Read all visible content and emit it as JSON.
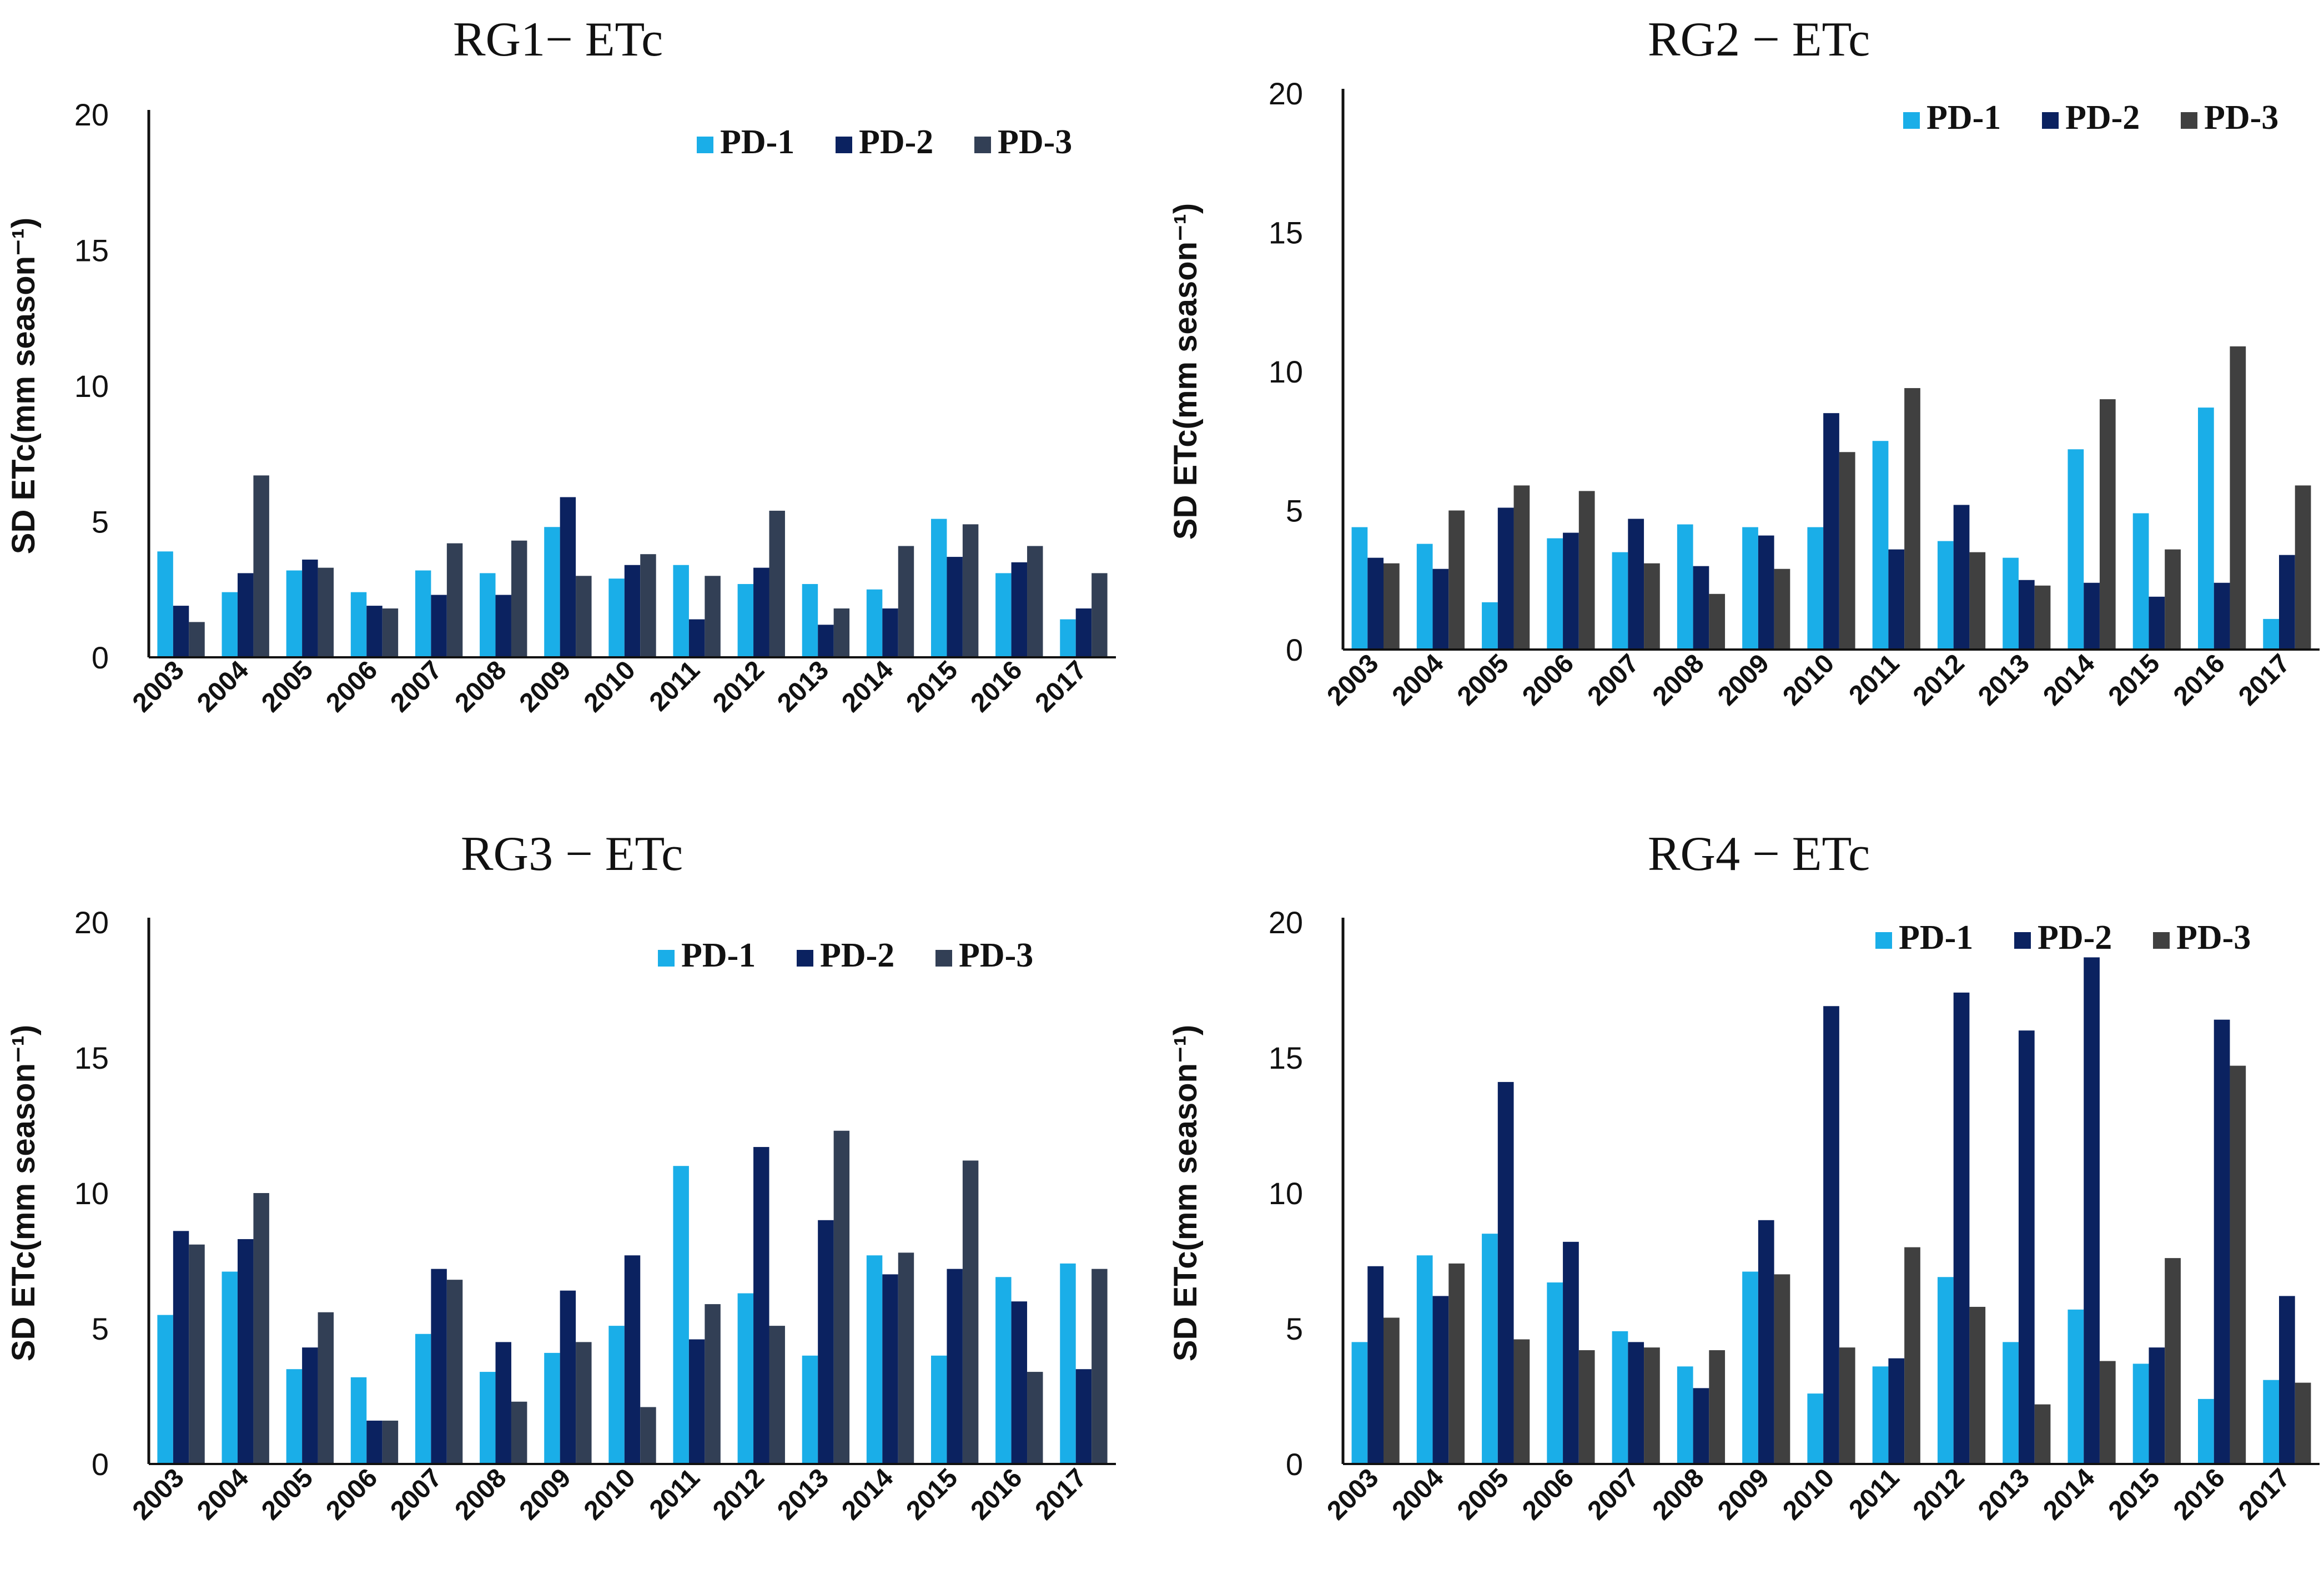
{
  "chart_data": [
    {
      "type": "bar",
      "title": "RG1− ETc",
      "ylabel": "SD ETc(mm season⁻¹)",
      "xlabel": "",
      "ylim": [
        0,
        20
      ],
      "yticks": [
        "0",
        "5",
        "10",
        "15",
        "20"
      ],
      "legend_position": "top-right",
      "categories": [
        "2003",
        "2004",
        "2005",
        "2006",
        "2007",
        "2008",
        "2009",
        "2010",
        "2011",
        "2012",
        "2013",
        "2014",
        "2015",
        "2016",
        "2017"
      ],
      "series": [
        {
          "name": "PD-1",
          "color": "#1aaee8",
          "values": [
            3.9,
            2.4,
            3.2,
            2.4,
            3.2,
            3.1,
            4.8,
            2.9,
            3.4,
            2.7,
            2.7,
            2.5,
            5.1,
            3.1,
            1.4
          ]
        },
        {
          "name": "PD-2",
          "color": "#0b2260",
          "values": [
            1.9,
            3.1,
            3.6,
            1.9,
            2.3,
            2.3,
            5.9,
            3.4,
            1.4,
            3.3,
            1.2,
            1.8,
            3.7,
            3.5,
            1.8
          ]
        },
        {
          "name": "PD-3",
          "color": "#323f55",
          "values": [
            1.3,
            6.7,
            3.3,
            1.8,
            4.2,
            4.3,
            3.0,
            3.8,
            3.0,
            5.4,
            1.8,
            4.1,
            4.9,
            4.1,
            3.1
          ]
        }
      ]
    },
    {
      "type": "bar",
      "title": "RG2 − ETc",
      "ylabel": "SD ETc(mm season⁻¹)",
      "xlabel": "",
      "ylim": [
        0,
        20
      ],
      "yticks": [
        "0",
        "5",
        "10",
        "15",
        "20"
      ],
      "legend_position": "top-right",
      "categories": [
        "2003",
        "2004",
        "2005",
        "2006",
        "2007",
        "2008",
        "2009",
        "2010",
        "2011",
        "2012",
        "2013",
        "2014",
        "2015",
        "2016",
        "2017"
      ],
      "series": [
        {
          "name": "PD-1",
          "color": "#1aaee8",
          "values": [
            4.4,
            3.8,
            1.7,
            4.0,
            3.5,
            4.5,
            4.4,
            4.4,
            7.5,
            3.9,
            3.3,
            7.2,
            4.9,
            8.7,
            1.1
          ]
        },
        {
          "name": "PD-2",
          "color": "#0b2260",
          "values": [
            3.3,
            2.9,
            5.1,
            4.2,
            4.7,
            3.0,
            4.1,
            8.5,
            3.6,
            5.2,
            2.5,
            2.4,
            1.9,
            2.4,
            3.4
          ]
        },
        {
          "name": "PD-3",
          "color": "#404040",
          "values": [
            3.1,
            5.0,
            5.9,
            5.7,
            3.1,
            2.0,
            2.9,
            7.1,
            9.4,
            3.5,
            2.3,
            9.0,
            3.6,
            10.9,
            5.9
          ]
        }
      ]
    },
    {
      "type": "bar",
      "title": "RG3 − ETc",
      "ylabel": "SD ETc(mm season⁻¹)",
      "xlabel": "",
      "ylim": [
        0,
        20
      ],
      "yticks": [
        "0",
        "5",
        "10",
        "15",
        "20"
      ],
      "legend_position": "top-right",
      "categories": [
        "2003",
        "2004",
        "2005",
        "2006",
        "2007",
        "2008",
        "2009",
        "2010",
        "2011",
        "2012",
        "2013",
        "2014",
        "2015",
        "2016",
        "2017"
      ],
      "series": [
        {
          "name": "PD-1",
          "color": "#1aaee8",
          "values": [
            5.5,
            7.1,
            3.5,
            3.2,
            4.8,
            3.4,
            4.1,
            5.1,
            11.0,
            6.3,
            4.0,
            7.7,
            4.0,
            6.9,
            7.4
          ]
        },
        {
          "name": "PD-2",
          "color": "#0b2260",
          "values": [
            8.6,
            8.3,
            4.3,
            1.6,
            7.2,
            4.5,
            6.4,
            7.7,
            4.6,
            11.7,
            9.0,
            7.0,
            7.2,
            6.0,
            3.5
          ]
        },
        {
          "name": "PD-3",
          "color": "#323f55",
          "values": [
            8.1,
            10.0,
            5.6,
            1.6,
            6.8,
            2.3,
            4.5,
            2.1,
            5.9,
            5.1,
            12.3,
            7.8,
            11.2,
            3.4,
            7.2
          ]
        }
      ]
    },
    {
      "type": "bar",
      "title": "RG4 − ETc",
      "ylabel": "SD ETc(mm season⁻¹)",
      "xlabel": "",
      "ylim": [
        0,
        20
      ],
      "yticks": [
        "0",
        "5",
        "10",
        "15",
        "20"
      ],
      "legend_position": "top-right",
      "categories": [
        "2003",
        "2004",
        "2005",
        "2006",
        "2007",
        "2008",
        "2009",
        "2010",
        "2011",
        "2012",
        "2013",
        "2014",
        "2015",
        "2016",
        "2017"
      ],
      "series": [
        {
          "name": "PD-1",
          "color": "#1aaee8",
          "values": [
            4.5,
            7.7,
            8.5,
            6.7,
            4.9,
            3.6,
            7.1,
            2.6,
            3.6,
            6.9,
            4.5,
            5.7,
            3.7,
            2.4,
            3.1
          ]
        },
        {
          "name": "PD-2",
          "color": "#0b2260",
          "values": [
            7.3,
            6.2,
            14.1,
            8.2,
            4.5,
            2.8,
            9.0,
            16.9,
            3.9,
            17.4,
            16.0,
            18.7,
            4.3,
            16.4,
            6.2
          ]
        },
        {
          "name": "PD-3",
          "color": "#404040",
          "values": [
            5.4,
            7.4,
            4.6,
            4.2,
            4.3,
            4.2,
            7.0,
            4.3,
            8.0,
            5.8,
            2.2,
            3.8,
            7.6,
            14.7,
            3.0
          ]
        }
      ]
    }
  ]
}
